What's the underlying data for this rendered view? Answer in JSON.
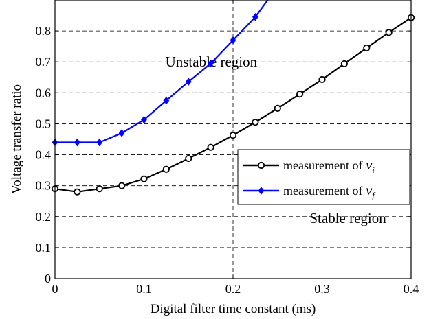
{
  "chart_data": {
    "type": "line",
    "xlabel": "Digital filter time constant (ms)",
    "ylabel": "Voltage transfer ratio",
    "xlim": [
      0,
      0.4
    ],
    "ylim": [
      0,
      0.9
    ],
    "xticks": [
      "0",
      "0.1",
      "0.2",
      "0.3",
      "0.4"
    ],
    "yticks": [
      "0",
      "0.1",
      "0.2",
      "0.3",
      "0.4",
      "0.5",
      "0.6",
      "0.7",
      "0.8"
    ],
    "grid": true,
    "legend_position": "middle-right",
    "annotations": [
      {
        "text": "Unstable region",
        "x": 0.124,
        "y": 0.7
      },
      {
        "text": "Stable region",
        "x": 0.286,
        "y": 0.195
      }
    ],
    "series": [
      {
        "name": "measurement of v_i",
        "legend_main": "measurement of ",
        "legend_var": "v",
        "legend_sub": "i",
        "color": "#000000",
        "marker": "circle",
        "x": [
          0,
          0.025,
          0.05,
          0.075,
          0.1,
          0.125,
          0.15,
          0.175,
          0.2,
          0.225,
          0.25,
          0.275,
          0.3,
          0.325,
          0.35,
          0.375,
          0.4
        ],
        "y": [
          0.29,
          0.28,
          0.29,
          0.3,
          0.322,
          0.353,
          0.388,
          0.424,
          0.463,
          0.505,
          0.55,
          0.596,
          0.643,
          0.694,
          0.745,
          0.795,
          0.843
        ]
      },
      {
        "name": "measurement of v_f",
        "legend_main": "measurement of ",
        "legend_var": "v",
        "legend_sub": "f",
        "color": "#0000ff",
        "marker": "diamond",
        "x": [
          0,
          0.025,
          0.05,
          0.075,
          0.1,
          0.125,
          0.15,
          0.175,
          0.2,
          0.225,
          0.239
        ],
        "y": [
          0.44,
          0.44,
          0.44,
          0.47,
          0.513,
          0.575,
          0.636,
          0.695,
          0.77,
          0.845,
          0.9
        ],
        "markers_count": 10
      }
    ]
  }
}
